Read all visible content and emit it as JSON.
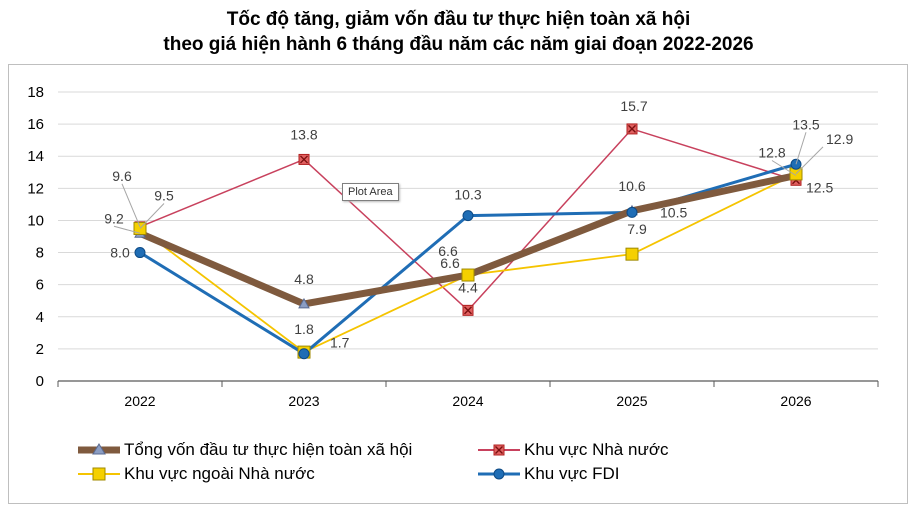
{
  "chart_data": {
    "type": "line",
    "title_line1": "Tốc độ tăng, giảm vốn đầu tư thực hiện toàn xã hội",
    "title_line2": "theo giá hiện hành 6 tháng đầu năm các năm giai đoạn 2022-2026",
    "categories": [
      "2022",
      "2023",
      "2024",
      "2025",
      "2026"
    ],
    "ylim": [
      0,
      18
    ],
    "yticks": [
      0,
      2,
      4,
      6,
      8,
      10,
      12,
      14,
      16,
      18
    ],
    "grid": true,
    "legend_position": "bottom",
    "series": [
      {
        "name": "Tổng vốn đầu tư thực hiện toàn xã hội",
        "values": [
          9.2,
          4.8,
          6.6,
          10.6,
          12.8
        ],
        "color": "#7f5a3e",
        "marker": "triangle",
        "labels": [
          "9.2",
          "4.8",
          "6.6",
          "10.6",
          "12.8"
        ]
      },
      {
        "name": "Khu vực Nhà nước",
        "values": [
          9.6,
          13.8,
          4.4,
          15.7,
          12.5
        ],
        "color": "#c8415d",
        "marker": "square-x",
        "labels": [
          "9.6",
          "13.8",
          "4.4",
          "15.7",
          "12.5"
        ]
      },
      {
        "name": "Khu vực ngoài Nhà nước",
        "values": [
          9.5,
          1.8,
          6.6,
          7.9,
          12.9
        ],
        "color": "#f5c400",
        "marker": "square",
        "labels": [
          "9.5",
          "1.8",
          "6.6",
          "7.9",
          "12.9"
        ]
      },
      {
        "name": "Khu vực FDI",
        "values": [
          8.0,
          1.7,
          10.3,
          10.5,
          13.5
        ],
        "color": "#1f6db5",
        "marker": "circle",
        "labels": [
          "8.0",
          "1.7",
          "10.3",
          "10.5",
          "13.5"
        ]
      }
    ]
  },
  "tooltip": "Plot Area"
}
